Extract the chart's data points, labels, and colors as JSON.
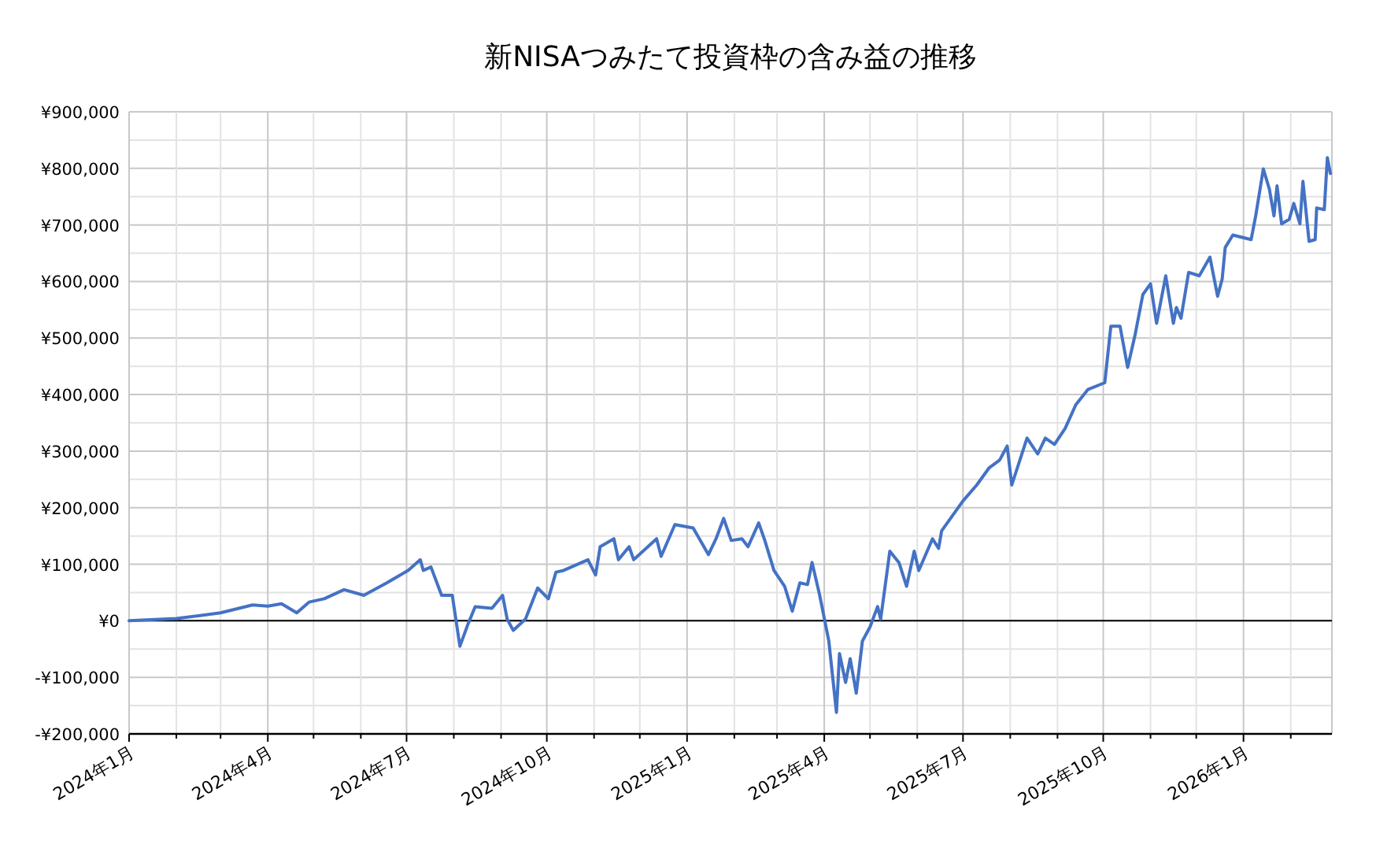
{
  "chart_data": {
    "type": "line",
    "title": "新NISAつみたて投資枠の含み益の推移",
    "color": "#4472c4",
    "grid": true,
    "xlim": [
      "2024-01-01",
      "2026-02-28"
    ],
    "ylim": [
      -200000,
      900000
    ],
    "xticks": [
      {
        "value": "2024-01-01",
        "label": "2024年1月"
      },
      {
        "value": "2024-02-01",
        "label": null
      },
      {
        "value": "2024-03-01",
        "label": null
      },
      {
        "value": "2024-04-01",
        "label": "2024年4月"
      },
      {
        "value": "2024-05-01",
        "label": null
      },
      {
        "value": "2024-06-01",
        "label": null
      },
      {
        "value": "2024-07-01",
        "label": "2024年7月"
      },
      {
        "value": "2024-08-01",
        "label": null
      },
      {
        "value": "2024-09-01",
        "label": null
      },
      {
        "value": "2024-10-01",
        "label": "2024年10月"
      },
      {
        "value": "2024-11-01",
        "label": null
      },
      {
        "value": "2024-12-01",
        "label": null
      },
      {
        "value": "2025-01-01",
        "label": "2025年1月"
      },
      {
        "value": "2025-02-01",
        "label": null
      },
      {
        "value": "2025-03-01",
        "label": null
      },
      {
        "value": "2025-04-01",
        "label": "2025年4月"
      },
      {
        "value": "2025-05-01",
        "label": null
      },
      {
        "value": "2025-06-01",
        "label": null
      },
      {
        "value": "2025-07-01",
        "label": "2025年7月"
      },
      {
        "value": "2025-08-01",
        "label": null
      },
      {
        "value": "2025-09-01",
        "label": null
      },
      {
        "value": "2025-10-01",
        "label": "2025年10月"
      },
      {
        "value": "2025-11-01",
        "label": null
      },
      {
        "value": "2025-12-01",
        "label": null
      },
      {
        "value": "2026-01-01",
        "label": "2026年1月"
      },
      {
        "value": "2026-02-01",
        "label": null
      }
    ],
    "yticks": [
      {
        "value": -200000,
        "label": "-¥200,000"
      },
      {
        "value": -150000,
        "label": null
      },
      {
        "value": -100000,
        "label": "-¥100,000"
      },
      {
        "value": -50000,
        "label": null
      },
      {
        "value": 0,
        "label": "¥0"
      },
      {
        "value": 50000,
        "label": null
      },
      {
        "value": 100000,
        "label": "¥100,000"
      },
      {
        "value": 150000,
        "label": null
      },
      {
        "value": 200000,
        "label": "¥200,000"
      },
      {
        "value": 250000,
        "label": null
      },
      {
        "value": 300000,
        "label": "¥300,000"
      },
      {
        "value": 350000,
        "label": null
      },
      {
        "value": 400000,
        "label": "¥400,000"
      },
      {
        "value": 450000,
        "label": null
      },
      {
        "value": 500000,
        "label": "¥500,000"
      },
      {
        "value": 550000,
        "label": null
      },
      {
        "value": 600000,
        "label": "¥600,000"
      },
      {
        "value": 650000,
        "label": null
      },
      {
        "value": 700000,
        "label": "¥700,000"
      },
      {
        "value": 750000,
        "label": null
      },
      {
        "value": 800000,
        "label": "¥800,000"
      },
      {
        "value": 850000,
        "label": null
      },
      {
        "value": 900000,
        "label": "¥900,000"
      }
    ],
    "ref_lines": [
      {
        "axis": "y",
        "value": 0,
        "color": "#000000"
      }
    ],
    "x": [
      "2024-01-01",
      "2024-02-01",
      "2024-03-01",
      "2024-03-22",
      "2024-04-01",
      "2024-04-10",
      "2024-04-20",
      "2024-04-28",
      "2024-05-08",
      "2024-05-21",
      "2024-06-03",
      "2024-06-18",
      "2024-07-02",
      "2024-07-10",
      "2024-07-12",
      "2024-07-17",
      "2024-07-24",
      "2024-07-31",
      "2024-08-05",
      "2024-08-10",
      "2024-08-15",
      "2024-08-26",
      "2024-09-02",
      "2024-09-05",
      "2024-09-09",
      "2024-09-17",
      "2024-09-25",
      "2024-10-02",
      "2024-10-07",
      "2024-10-12",
      "2024-10-28",
      "2024-11-02",
      "2024-11-05",
      "2024-11-14",
      "2024-11-17",
      "2024-11-24",
      "2024-11-27",
      "2024-12-12",
      "2024-12-15",
      "2024-12-24",
      "2025-01-05",
      "2025-01-15",
      "2025-01-20",
      "2025-01-25",
      "2025-01-30",
      "2025-02-06",
      "2025-02-10",
      "2025-02-17",
      "2025-02-21",
      "2025-02-27",
      "2025-03-06",
      "2025-03-11",
      "2025-03-16",
      "2025-03-21",
      "2025-03-24",
      "2025-03-29",
      "2025-04-04",
      "2025-04-09",
      "2025-04-11",
      "2025-04-15",
      "2025-04-18",
      "2025-04-22",
      "2025-04-26",
      "2025-05-01",
      "2025-05-06",
      "2025-05-08",
      "2025-05-14",
      "2025-05-20",
      "2025-05-25",
      "2025-05-30",
      "2025-06-02",
      "2025-06-11",
      "2025-06-15",
      "2025-06-17",
      "2025-07-01",
      "2025-07-10",
      "2025-07-18",
      "2025-07-25",
      "2025-07-30",
      "2025-08-02",
      "2025-08-12",
      "2025-08-19",
      "2025-08-24",
      "2025-08-30",
      "2025-09-06",
      "2025-09-13",
      "2025-09-21",
      "2025-10-02",
      "2025-10-06",
      "2025-10-12",
      "2025-10-17",
      "2025-10-22",
      "2025-10-27",
      "2025-11-01",
      "2025-11-05",
      "2025-11-11",
      "2025-11-16",
      "2025-11-18",
      "2025-11-21",
      "2025-11-26",
      "2025-12-03",
      "2025-12-10",
      "2025-12-15",
      "2025-12-18",
      "2025-12-20",
      "2025-12-25",
      "2026-01-06",
      "2026-01-09",
      "2026-01-14",
      "2026-01-18",
      "2026-01-21",
      "2026-01-23",
      "2026-01-26",
      "2026-01-31",
      "2026-02-03",
      "2026-02-07",
      "2026-02-09",
      "2026-02-13",
      "2026-02-17",
      "2026-02-18",
      "2026-02-23",
      "2026-02-25",
      "2026-02-27"
    ],
    "values": [
      0,
      4000,
      14000,
      28000,
      26000,
      30000,
      14000,
      33000,
      39000,
      55000,
      45000,
      67000,
      89000,
      108000,
      89000,
      95000,
      45000,
      45000,
      -45000,
      -8000,
      25000,
      22000,
      45000,
      3000,
      -17000,
      3000,
      58000,
      39000,
      86000,
      89000,
      108000,
      81000,
      131000,
      145000,
      108000,
      131000,
      108000,
      145000,
      114000,
      170000,
      164000,
      117000,
      145000,
      181000,
      142000,
      145000,
      131000,
      173000,
      142000,
      89000,
      61000,
      17000,
      67000,
      64000,
      103000,
      45000,
      -36000,
      -162000,
      -58000,
      -109000,
      -67000,
      -128000,
      -36000,
      -11000,
      25000,
      3000,
      123000,
      103000,
      61000,
      123000,
      89000,
      145000,
      128000,
      159000,
      212000,
      240000,
      270000,
      284000,
      309000,
      240000,
      323000,
      295000,
      323000,
      312000,
      340000,
      382000,
      409000,
      421000,
      521000,
      521000,
      448000,
      507000,
      577000,
      596000,
      526000,
      610000,
      526000,
      554000,
      535000,
      616000,
      610000,
      643000,
      574000,
      604000,
      660000,
      682000,
      674000,
      716000,
      799000,
      763000,
      716000,
      769000,
      702000,
      710000,
      738000,
      702000,
      777000,
      671000,
      674000,
      730000,
      727000,
      819000,
      791000
    ]
  }
}
